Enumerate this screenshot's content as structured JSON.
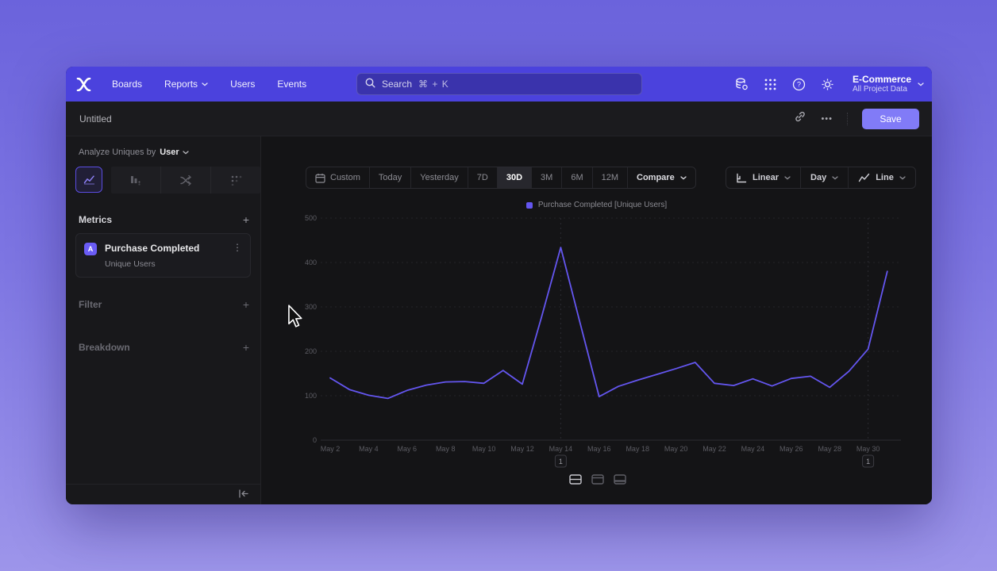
{
  "nav": {
    "links": [
      {
        "label": "Boards",
        "has_menu": false
      },
      {
        "label": "Reports",
        "has_menu": true
      },
      {
        "label": "Users",
        "has_menu": false
      },
      {
        "label": "Events",
        "has_menu": false
      }
    ],
    "search": {
      "label": "Search",
      "shortcut": "⌘ + K"
    },
    "project": {
      "name": "E-Commerce",
      "scope": "All Project Data"
    }
  },
  "header": {
    "title": "Untitled",
    "save_label": "Save",
    "more_icon": "•••"
  },
  "sidebar": {
    "analyze_prefix": "Analyze Uniques by",
    "analyze_value": "User",
    "metrics_title": "Metrics",
    "metric_card": {
      "badge": "A",
      "title": "Purchase Completed",
      "subtitle": "Unique Users"
    },
    "filter_label": "Filter",
    "breakdown_label": "Breakdown"
  },
  "controls": {
    "ranges": [
      "Custom",
      "Today",
      "Yesterday",
      "7D",
      "30D",
      "3M",
      "6M",
      "12M"
    ],
    "active_range": "30D",
    "compare_label": "Compare",
    "scale_label": "Linear",
    "interval_label": "Day",
    "chart_type_label": "Line"
  },
  "icons": {
    "plus": "+",
    "kebab": "⋮"
  },
  "chart_data": {
    "type": "line",
    "title": "",
    "legend_position": "top-center",
    "grid": "horizontal-dashed",
    "ylim": [
      0,
      500
    ],
    "y_ticks": [
      0,
      100,
      200,
      300,
      400,
      500
    ],
    "x_tick_labels": [
      "May 2",
      "May 4",
      "May 6",
      "May 8",
      "May 10",
      "May 12",
      "May 14",
      "May 16",
      "May 18",
      "May 20",
      "May 22",
      "May 24",
      "May 26",
      "May 28",
      "May 30"
    ],
    "series": [
      {
        "name": "Purchase Completed [Unique Users]",
        "color": "#6456f0",
        "x": [
          "May 2",
          "May 3",
          "May 4",
          "May 5",
          "May 6",
          "May 7",
          "May 8",
          "May 9",
          "May 10",
          "May 11",
          "May 12",
          "May 13",
          "May 14",
          "May 15",
          "May 16",
          "May 17",
          "May 18",
          "May 19",
          "May 20",
          "May 21",
          "May 22",
          "May 23",
          "May 24",
          "May 25",
          "May 26",
          "May 27",
          "May 28",
          "May 29",
          "May 30",
          "May 31"
        ],
        "values": [
          140,
          114,
          101,
          94,
          112,
          124,
          131,
          132,
          128,
          157,
          126,
          277,
          434,
          265,
          98,
          121,
          135,
          148,
          161,
          175,
          128,
          123,
          138,
          122,
          139,
          144,
          119,
          155,
          205,
          380
        ]
      }
    ],
    "annotations": [
      {
        "x": "May 14",
        "label": "1"
      },
      {
        "x": "May 30",
        "label": "1"
      }
    ]
  }
}
